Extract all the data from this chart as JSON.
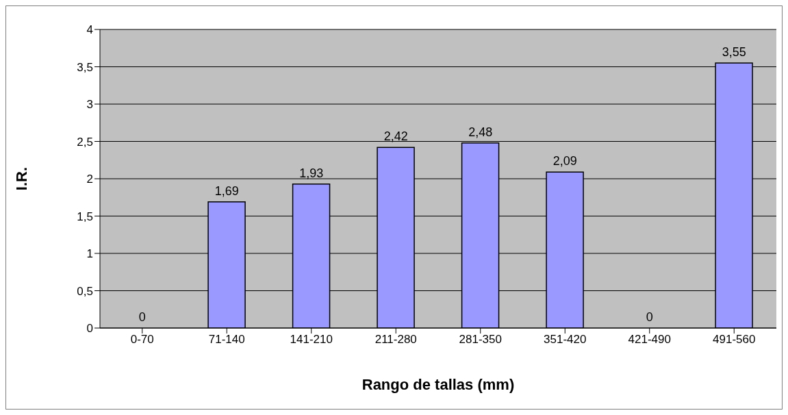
{
  "chart_data": {
    "type": "bar",
    "xlabel": "Rango de tallas (mm)",
    "ylabel": "I.R.",
    "categories": [
      "0-70",
      "71-140",
      "141-210",
      "211-280",
      "281-350",
      "351-420",
      "421-490",
      "491-560"
    ],
    "values": [
      0,
      1.69,
      1.93,
      2.42,
      2.48,
      2.09,
      0,
      3.55
    ],
    "value_labels": [
      "0",
      "1,69",
      "1,93",
      "2,42",
      "2,48",
      "2,09",
      "0",
      "3,55"
    ],
    "color": "#9999ff",
    "ylim": [
      0,
      4
    ],
    "yticks": [
      0,
      {
        "value": 0.5,
        "label": "0,5"
      },
      1,
      {
        "value": 1.5,
        "label": "1,5"
      },
      2,
      {
        "value": 2.5,
        "label": "2,5"
      },
      3,
      {
        "value": 3.5,
        "label": "3,5"
      },
      4
    ],
    "grid": "y",
    "legend": false
  }
}
